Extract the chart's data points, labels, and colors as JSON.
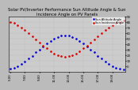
{
  "title": "Solar PV/Inverter Performance Sun Altitude Angle & Sun Incidence Angle on PV Panels",
  "bg_color": "#cccccc",
  "fig_color": "#bbbbbb",
  "blue_label": "Sun Altitude Angle",
  "red_label": "Sun Incidence Angle",
  "x_tick_labels": [
    "5:00",
    "5:30",
    "6:00",
    "6:30",
    "7:00",
    "7:30",
    "8:00",
    "8:30",
    "9:00",
    "9:30",
    "10:00",
    "10:30",
    "11:00",
    "11:30",
    "12:00",
    "12:30",
    "13:00",
    "13:30",
    "14:00",
    "14:30",
    "15:00",
    "15:30",
    "16:00",
    "16:30",
    "17:00",
    "17:30",
    "18:00",
    "18:30",
    "19:00",
    "19:30",
    "20:00",
    "20:30"
  ],
  "blue_x": [
    0,
    1,
    2,
    3,
    4,
    5,
    6,
    7,
    8,
    9,
    10,
    11,
    12,
    13,
    14,
    15,
    16,
    17,
    18,
    19,
    20,
    21,
    22,
    23,
    24,
    25,
    26,
    27,
    28,
    29,
    30,
    31
  ],
  "blue_y": [
    -5,
    -3,
    0,
    4,
    8,
    14,
    19,
    25,
    30,
    36,
    41,
    46,
    50,
    53,
    55,
    56,
    55,
    53,
    50,
    46,
    41,
    36,
    30,
    25,
    19,
    14,
    8,
    4,
    0,
    -3,
    -5,
    -6
  ],
  "red_x": [
    0,
    1,
    2,
    3,
    4,
    5,
    6,
    7,
    8,
    9,
    10,
    11,
    12,
    13,
    14,
    15,
    16,
    17,
    18,
    19,
    20,
    21,
    22,
    23,
    24,
    25,
    26,
    27,
    28,
    29,
    30,
    31
  ],
  "red_y": [
    80,
    78,
    74,
    70,
    65,
    60,
    54,
    48,
    42,
    37,
    32,
    27,
    23,
    20,
    18,
    17,
    18,
    20,
    23,
    27,
    32,
    37,
    42,
    48,
    54,
    60,
    65,
    70,
    74,
    78,
    80,
    82
  ],
  "ylim": [
    -10,
    90
  ],
  "yticks": [
    0,
    10,
    20,
    30,
    40,
    50,
    60,
    70,
    80,
    90
  ],
  "grid_color": "#999999",
  "blue_color": "#0000dd",
  "red_color": "#dd0000",
  "title_fontsize": 3.8,
  "tick_fontsize": 2.8,
  "legend_fontsize": 2.5
}
